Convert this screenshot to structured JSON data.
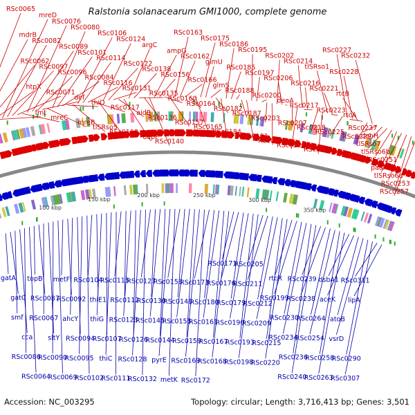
{
  "title": "Ralstonia solanacearum GMI1000, complete genome",
  "footer": {
    "accession": "Accession: NC_003295",
    "topology": "Topology: circular; Length: 3,716,413 bp; Genes: 3,501"
  },
  "ticks": [
    "100 kbp",
    "150 kbp",
    "200 kbp",
    "250 kbp",
    "300 kbp",
    "350 kbp"
  ],
  "colors": {
    "forward": "#dd0000",
    "reverse": "#0000cc",
    "backbone": "#888888",
    "forward_label": "#cc0000",
    "reverse_label": "#0000aa"
  },
  "top_labels": [
    "RSc0065",
    "mdrB",
    "RSc0062",
    "htpX",
    "fmt",
    "mreD",
    "RSc0082",
    "RSc0097",
    "RSc0071",
    "mreC",
    "RSc0076",
    "RSc0089",
    "RSc0096",
    "def",
    "mreB",
    "RSc0080",
    "RSc0101",
    "RSc0084",
    "thiD",
    "tlSRso5",
    "RSc0106",
    "RSc0114",
    "RSc0116",
    "RSc0117",
    "RSc0118",
    "RSc0124",
    "RSc0122",
    "RSc0131",
    "aidB",
    "dapF",
    "argC",
    "RSc0138",
    "RSc0135",
    "RSc0136",
    "RSc0140",
    "ampG",
    "RSc0156",
    "RSc0160",
    "RSc0157",
    "RSc0163",
    "RSc0162",
    "RSc0166",
    "RSc0164",
    "RSc0165",
    "RSc0175",
    "glmU",
    "glmS",
    "RSc0182",
    "RSc0184",
    "RSc0186",
    "RSc0185",
    "RSc0188",
    "RSc0187",
    "RSc0191",
    "RSc0195",
    "RSc0197",
    "RSc0200",
    "RSc0203",
    "RSc0201",
    "RSc0202",
    "RSc0206",
    "deoA",
    "RSc0207",
    "RSc0210",
    "RSc0214",
    "RSc0216",
    "RSc0217",
    "RSc0218",
    "RSc0219",
    "tlSRso1",
    "RSc0221",
    "RSc0223",
    "RSc0225",
    "RSc0227",
    "RSc0228",
    "rtcB",
    "rtcA",
    "RSc0229",
    "RSc0232",
    "RSc0237",
    "dehH",
    "tlSRso7",
    "tlSRso6b",
    "RSc0251",
    "paaH1",
    "tlSRso6a",
    "RSc0253",
    "RSc0257"
  ],
  "bottom_labels": [
    "gatA",
    "gatC",
    "smf",
    "cca",
    "RSc0086",
    "RSc0064",
    "topB",
    "RSc0087",
    "RSc0067",
    "sltY",
    "RSc0090",
    "RSc0069",
    "metF",
    "RSc0092",
    "ahcY",
    "RSc0094",
    "RSc0095",
    "RSc0102",
    "RSc0104",
    "thiE1",
    "thiG",
    "RSc0107",
    "thiC",
    "RSc0111",
    "RSc0115",
    "RSc0112",
    "RSc0123",
    "RSc0126",
    "RSc0128",
    "RSc0132",
    "RSc0127",
    "RSc0130",
    "RSc0145",
    "RSc0144",
    "pyrE",
    "metK",
    "RSc0158",
    "RSc0148",
    "RSc0155",
    "RSc0159",
    "RSc0169",
    "RSc0172",
    "RSc0173",
    "RSc0180",
    "RSc0161",
    "RSc0167",
    "RSc0168",
    "RSc0171",
    "RSc0176",
    "RSc0179",
    "RSc0190",
    "RSc0193",
    "RSc0198",
    "RSc0205",
    "RSc0211",
    "RSc0212",
    "RSc0209",
    "RSc0215",
    "RSc0220",
    "rtcR",
    "RSc0199",
    "RSc0230",
    "RSc0234",
    "RSc0236",
    "RSc0240",
    "RSc0239",
    "RSc0238",
    "RSc0264",
    "RSc0254",
    "RSc0258",
    "RSc0263",
    "dsbA1",
    "aceK",
    "atoB",
    "vsrD",
    "RSc0290",
    "RSc0307",
    "RSc0311",
    "lipA"
  ]
}
